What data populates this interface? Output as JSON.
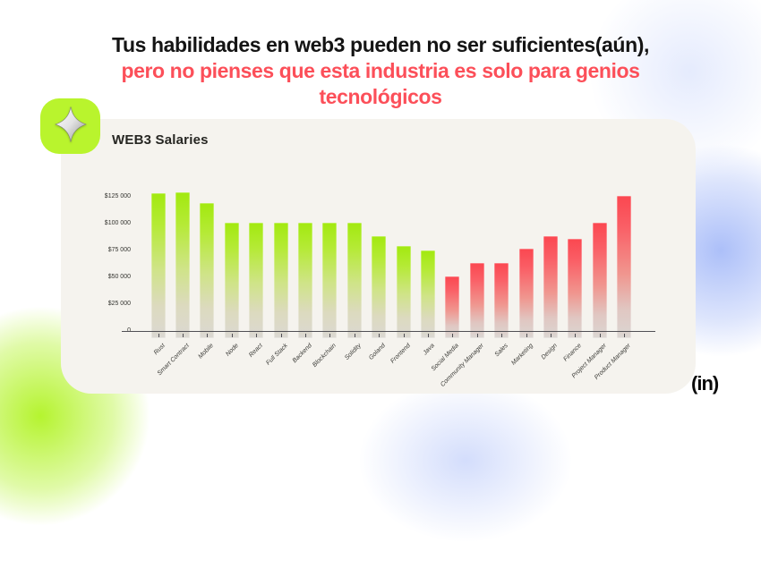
{
  "header": {
    "line1": "Tus habilidades en web3 pueden no ser suficientes(aún),",
    "line2": "pero no pienses que esta industria es solo para genios",
    "line3": "tecnológicos",
    "accent_color": "#fc4f59"
  },
  "card": {
    "title": "WEB3 Salaries",
    "background": "#f5f3ee"
  },
  "logo_badge": {
    "icon": "sparkle-icon",
    "background": "#b9f42d"
  },
  "brand_mark": "(in)",
  "chart_data": {
    "type": "bar",
    "title": "WEB3 Salaries",
    "categories": [
      "Rust",
      "Smart Contract",
      "Mobile",
      "Node",
      "React",
      "Full Stack",
      "Backend",
      "Blockchain",
      "Solidity",
      "Goland",
      "Frontend",
      "Java",
      "Social Media",
      "Community Manager",
      "Sales",
      "Marketing",
      "Design",
      "Finance",
      "Project Manager",
      "Product Manager"
    ],
    "values": [
      128000,
      129000,
      119000,
      101000,
      101000,
      101000,
      101000,
      101000,
      101000,
      88000,
      79000,
      75000,
      51000,
      63000,
      63000,
      77000,
      88000,
      86000,
      101000,
      126000
    ],
    "groups": [
      "tech",
      "tech",
      "tech",
      "tech",
      "tech",
      "tech",
      "tech",
      "tech",
      "tech",
      "tech",
      "tech",
      "tech",
      "nontech",
      "nontech",
      "nontech",
      "nontech",
      "nontech",
      "nontech",
      "nontech",
      "nontech"
    ],
    "group_colors": {
      "tech": "#a2e90f",
      "nontech": "#fb4750"
    },
    "fade_to_color": "#dbd8d2",
    "y_tick_labels": [
      "$125 000",
      "$100 000",
      "$75 000",
      "$50 000",
      "$25 000",
      "0"
    ],
    "y_tick_values": [
      125000,
      100000,
      75000,
      50000,
      25000,
      0
    ],
    "ylim": [
      0,
      135000
    ],
    "xlabel": "",
    "ylabel": "",
    "grid": false,
    "legend": null,
    "x_label_rotation_deg": -45
  }
}
